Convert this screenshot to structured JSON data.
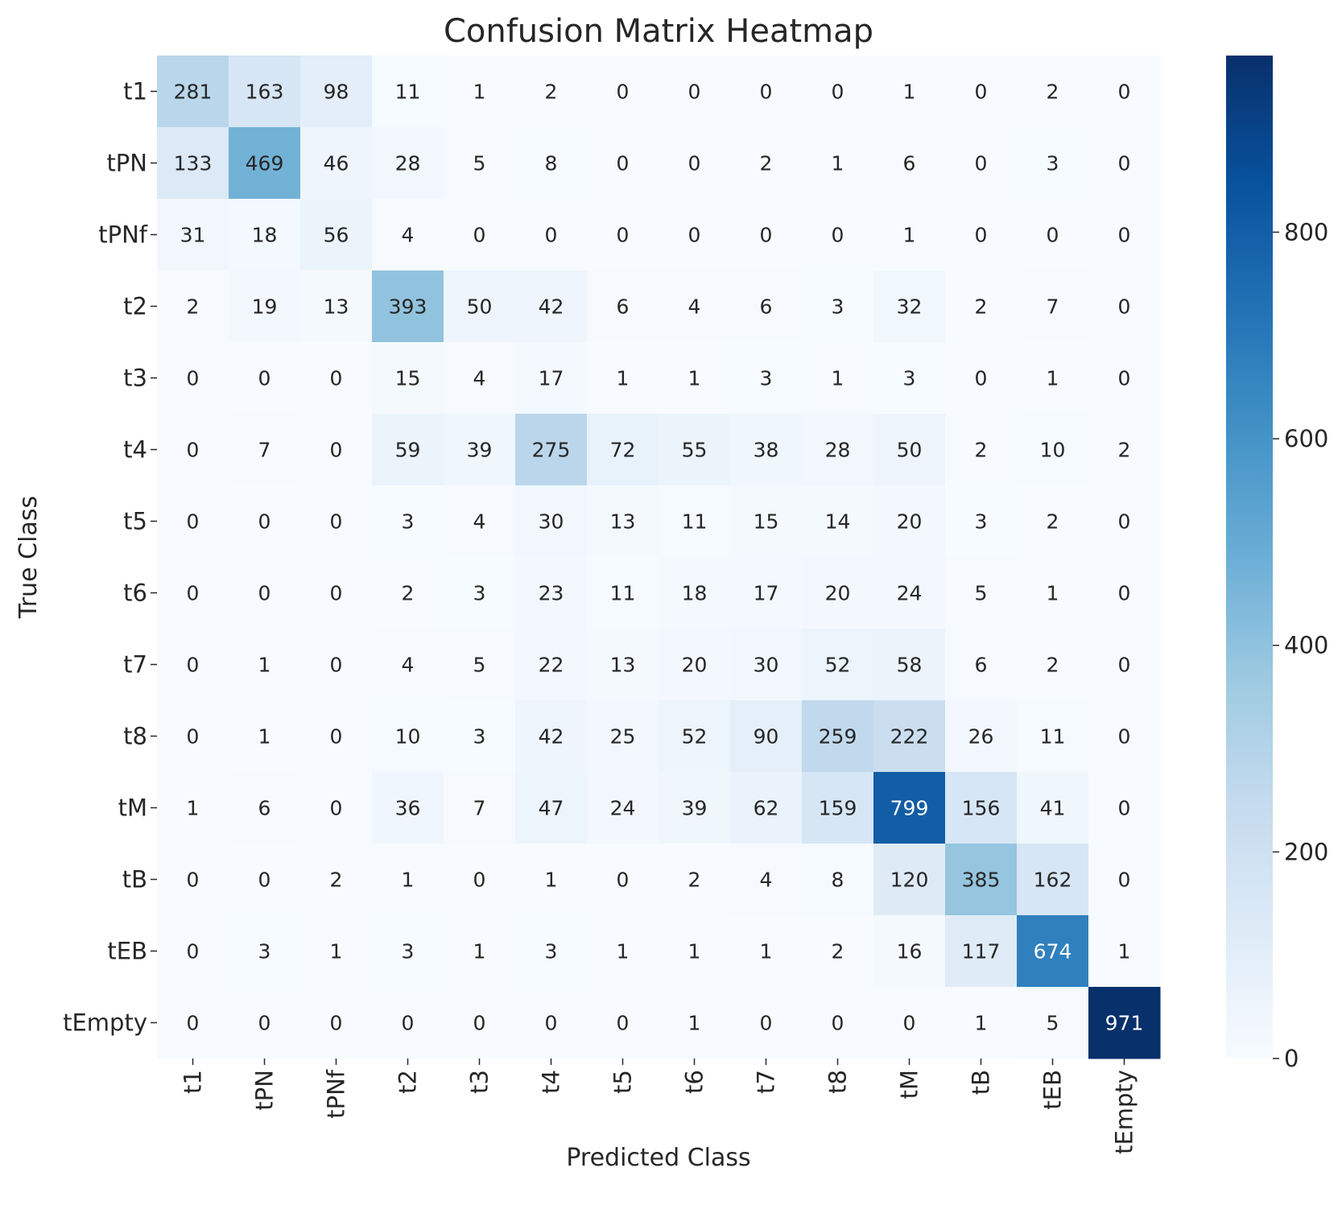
{
  "chart_data": {
    "type": "heatmap",
    "title": "Confusion Matrix Heatmap",
    "xlabel": "Predicted Class",
    "ylabel": "True Class",
    "x_categories": [
      "t1",
      "tPN",
      "tPNf",
      "t2",
      "t3",
      "t4",
      "t5",
      "t6",
      "t7",
      "t8",
      "tM",
      "tB",
      "tEB",
      "tEmpty"
    ],
    "y_categories": [
      "t1",
      "tPN",
      "tPNf",
      "t2",
      "t3",
      "t4",
      "t5",
      "t6",
      "t7",
      "t8",
      "tM",
      "tB",
      "tEB",
      "tEmpty"
    ],
    "values": [
      [
        281,
        163,
        98,
        11,
        1,
        2,
        0,
        0,
        0,
        0,
        1,
        0,
        2,
        0
      ],
      [
        133,
        469,
        46,
        28,
        5,
        8,
        0,
        0,
        2,
        1,
        6,
        0,
        3,
        0
      ],
      [
        31,
        18,
        56,
        4,
        0,
        0,
        0,
        0,
        0,
        0,
        1,
        0,
        0,
        0
      ],
      [
        2,
        19,
        13,
        393,
        50,
        42,
        6,
        4,
        6,
        3,
        32,
        2,
        7,
        0
      ],
      [
        0,
        0,
        0,
        15,
        4,
        17,
        1,
        1,
        3,
        1,
        3,
        0,
        1,
        0
      ],
      [
        0,
        7,
        0,
        59,
        39,
        275,
        72,
        55,
        38,
        28,
        50,
        2,
        10,
        2
      ],
      [
        0,
        0,
        0,
        3,
        4,
        30,
        13,
        11,
        15,
        14,
        20,
        3,
        2,
        0
      ],
      [
        0,
        0,
        0,
        2,
        3,
        23,
        11,
        18,
        17,
        20,
        24,
        5,
        1,
        0
      ],
      [
        0,
        1,
        0,
        4,
        5,
        22,
        13,
        20,
        30,
        52,
        58,
        6,
        2,
        0
      ],
      [
        0,
        1,
        0,
        10,
        3,
        42,
        25,
        52,
        90,
        259,
        222,
        26,
        11,
        0
      ],
      [
        1,
        6,
        0,
        36,
        7,
        47,
        24,
        39,
        62,
        159,
        799,
        156,
        41,
        0
      ],
      [
        0,
        0,
        2,
        1,
        0,
        1,
        0,
        2,
        4,
        8,
        120,
        385,
        162,
        0
      ],
      [
        0,
        3,
        1,
        3,
        1,
        3,
        1,
        1,
        1,
        2,
        16,
        117,
        674,
        1
      ],
      [
        0,
        0,
        0,
        0,
        0,
        0,
        0,
        1,
        0,
        0,
        0,
        1,
        5,
        971
      ]
    ],
    "colormap": "Blues",
    "color_range": [
      0,
      971
    ],
    "colorbar_ticks": [
      0,
      200,
      400,
      600,
      800
    ],
    "annotations": true,
    "grid": false
  }
}
